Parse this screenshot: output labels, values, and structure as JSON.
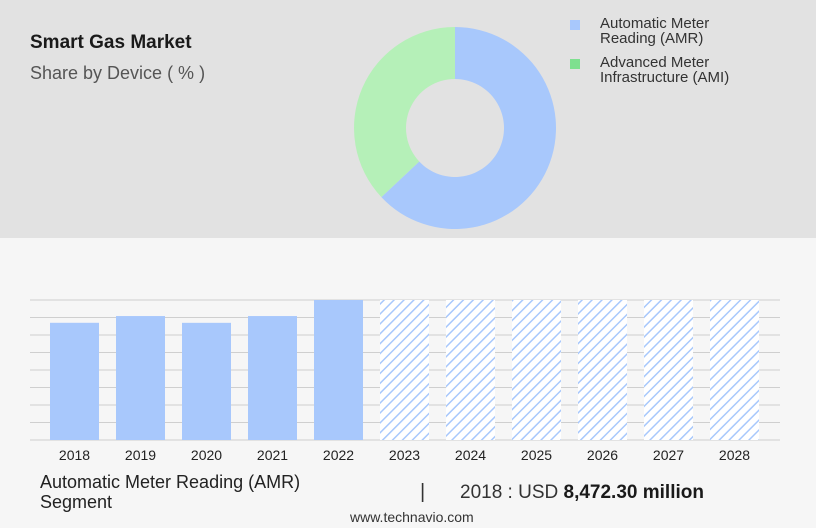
{
  "header": {
    "title": "Smart Gas Market",
    "subtitle": "Share by Device ( % )"
  },
  "legend": [
    {
      "label_line1": "Automatic Meter",
      "label_line2": "Reading (AMR)",
      "color": "#a8c8fc"
    },
    {
      "label_line1": "Advanced Meter",
      "label_line2": "Infrastructure (AMI)",
      "color": "#7ee08f"
    }
  ],
  "chart_data": [
    {
      "type": "pie",
      "title": "Share by Device ( % )",
      "variant": "donut",
      "categories": [
        "Automatic Meter Reading (AMR)",
        "Advanced Meter Infrastructure (AMI)"
      ],
      "values": [
        63,
        37
      ],
      "colors": [
        "#a8c8fc",
        "#b5f0b8"
      ]
    },
    {
      "type": "bar",
      "categories": [
        "2018",
        "2019",
        "2020",
        "2021",
        "2022",
        "2023",
        "2024",
        "2025",
        "2026",
        "2027",
        "2028"
      ],
      "values": [
        8472.3,
        8960,
        8470,
        8960,
        10120,
        10120,
        10120,
        10120,
        10120,
        10120,
        10120
      ],
      "forecast_from": "2023",
      "ylim": [
        0,
        10120
      ],
      "grid": true,
      "bar_color": "#a8c8fc",
      "forecast_pattern": "diagonal-hatch"
    }
  ],
  "footer": {
    "segment_line1": "Automatic Meter Reading (AMR)",
    "segment_line2": "Segment",
    "divider": "|",
    "value_prefix": "2018 : USD",
    "value_amount": "8,472.30 million",
    "source": "www.technavio.com"
  }
}
